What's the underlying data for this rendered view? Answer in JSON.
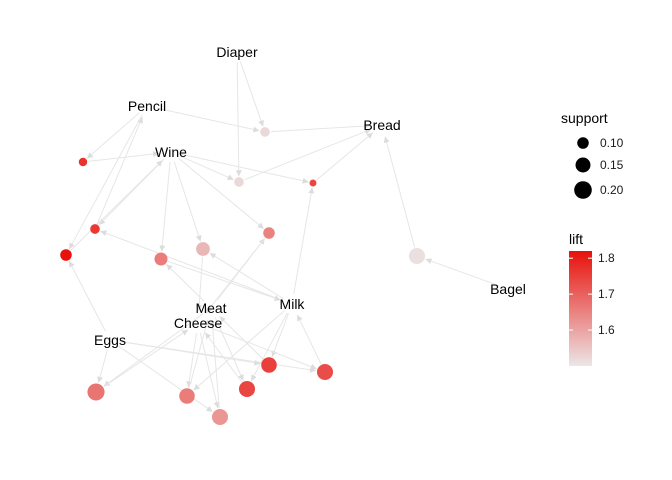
{
  "graph": {
    "type": "association-rules-network",
    "items": [
      {
        "id": "diaper",
        "label": "Diaper"
      },
      {
        "id": "pencil",
        "label": "Pencil"
      },
      {
        "id": "wine",
        "label": "Wine"
      },
      {
        "id": "bread",
        "label": "Bread"
      },
      {
        "id": "milk",
        "label": "Milk"
      },
      {
        "id": "meat",
        "label": "Meat"
      },
      {
        "id": "cheese",
        "label": "Cheese"
      },
      {
        "id": "eggs",
        "label": "Eggs"
      },
      {
        "id": "bagel",
        "label": "Bagel"
      }
    ],
    "rules": [
      {
        "id": "r1",
        "lhs": [
          "diaper",
          "pencil"
        ],
        "rhs": "bread",
        "support": 0.08,
        "lift": 1.52
      },
      {
        "id": "r2",
        "lhs": [
          "pencil"
        ],
        "rhs": "wine",
        "support": 0.07,
        "lift": 1.77
      },
      {
        "id": "r3",
        "lhs": [
          "diaper",
          "wine"
        ],
        "rhs": "bread",
        "support": 0.08,
        "lift": 1.52
      },
      {
        "id": "r4",
        "lhs": [
          "milk",
          "wine"
        ],
        "rhs": "bread",
        "support": 0.06,
        "lift": 1.74
      },
      {
        "id": "r5",
        "lhs": [
          "wine",
          "milk"
        ],
        "rhs": "pencil",
        "support": 0.08,
        "lift": 1.76
      },
      {
        "id": "r6",
        "lhs": [
          "eggs",
          "pencil"
        ],
        "rhs": "wine",
        "support": 0.1,
        "lift": 1.82
      },
      {
        "id": "r7",
        "lhs": [
          "wine",
          "meat"
        ],
        "rhs": "cheese",
        "support": 0.1,
        "lift": 1.65
      },
      {
        "id": "r8",
        "lhs": [
          "wine",
          "milk"
        ],
        "rhs": "cheese",
        "support": 0.13,
        "lift": 1.57
      },
      {
        "id": "r9",
        "lhs": [
          "wine",
          "meat"
        ],
        "rhs": "milk",
        "support": 0.12,
        "lift": 1.66
      },
      {
        "id": "r10",
        "lhs": [
          "bagel"
        ],
        "rhs": "bread",
        "support": 0.17,
        "lift": 1.51
      },
      {
        "id": "r11",
        "lhs": [
          "eggs",
          "meat"
        ],
        "rhs": "cheese",
        "support": 0.19,
        "lift": 1.67
      },
      {
        "id": "r12",
        "lhs": [
          "cheese",
          "milk"
        ],
        "rhs": "meat",
        "support": 0.16,
        "lift": 1.66
      },
      {
        "id": "r13",
        "lhs": [
          "eggs",
          "cheese"
        ],
        "rhs": "meat",
        "support": 0.17,
        "lift": 1.62
      },
      {
        "id": "r14",
        "lhs": [
          "meat",
          "milk"
        ],
        "rhs": "cheese",
        "support": 0.17,
        "lift": 1.74
      },
      {
        "id": "r15",
        "lhs": [
          "eggs",
          "milk"
        ],
        "rhs": "meat",
        "support": 0.16,
        "lift": 1.75
      },
      {
        "id": "r16",
        "lhs": [
          "eggs",
          "cheese"
        ],
        "rhs": "milk",
        "support": 0.17,
        "lift": 1.73
      }
    ],
    "edge_color": "#e6e6e6"
  },
  "legend": {
    "support": {
      "title": "support",
      "entries": [
        {
          "label": "0.10",
          "value": 0.1
        },
        {
          "label": "0.15",
          "value": 0.15
        },
        {
          "label": "0.20",
          "value": 0.2
        }
      ]
    },
    "lift": {
      "title": "lift",
      "ticks": [
        {
          "label": "1.8",
          "value": 1.8
        },
        {
          "label": "1.7",
          "value": 1.7
        },
        {
          "label": "1.6",
          "value": 1.6
        }
      ],
      "range": [
        1.5,
        1.82
      ],
      "low_color": "#ebe6e7",
      "high_color": "#e8110b"
    }
  }
}
